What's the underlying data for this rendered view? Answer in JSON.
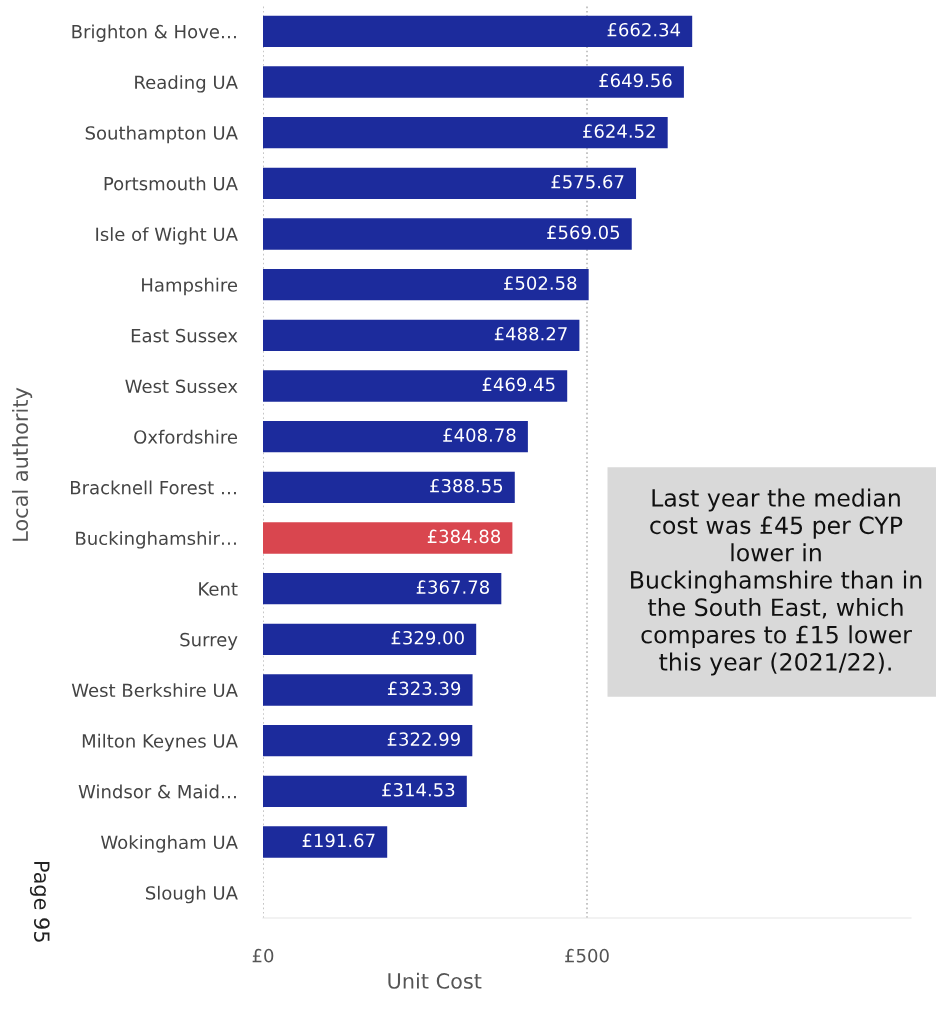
{
  "chart_data": {
    "type": "bar",
    "orientation": "horizontal",
    "xlabel": "Unit Cost",
    "ylabel": "Local authority",
    "categories": [
      "Brighton & Hove…",
      "Reading UA",
      "Southampton UA",
      "Portsmouth UA",
      "Isle of Wight UA",
      "Hampshire",
      "East Sussex",
      "West Sussex",
      "Oxfordshire",
      "Bracknell Forest …",
      "Buckinghamshir…",
      "Kent",
      "Surrey",
      "West Berkshire UA",
      "Milton Keynes UA",
      "Windsor & Maid…",
      "Wokingham UA",
      "Slough UA"
    ],
    "values": [
      662.34,
      649.56,
      624.52,
      575.67,
      569.05,
      502.58,
      488.27,
      469.45,
      408.78,
      388.55,
      384.88,
      367.78,
      329.0,
      323.39,
      322.99,
      314.53,
      191.67,
      null
    ],
    "value_labels": [
      "£662.34",
      "£649.56",
      "£624.52",
      "£575.67",
      "£569.05",
      "£502.58",
      "£488.27",
      "£469.45",
      "£408.78",
      "£388.55",
      "£384.88",
      "£367.78",
      "£329.00",
      "£323.39",
      "£322.99",
      "£314.53",
      "£191.67",
      null
    ],
    "colors": [
      "#1c2b9c",
      "#1c2b9c",
      "#1c2b9c",
      "#1c2b9c",
      "#1c2b9c",
      "#1c2b9c",
      "#1c2b9c",
      "#1c2b9c",
      "#1c2b9c",
      "#1c2b9c",
      "#d9464f",
      "#1c2b9c",
      "#1c2b9c",
      "#1c2b9c",
      "#1c2b9c",
      "#1c2b9c",
      "#1c2b9c",
      "#1c2b9c"
    ],
    "xlim": [
      0,
      1000
    ],
    "xticks": [
      {
        "value": 0,
        "label": "£0"
      },
      {
        "value": 500,
        "label": "£500"
      }
    ],
    "grid": "x",
    "annotations": [
      "Last year the median cost was £45 per CYP lower in Buckinghamshire than in the South East, which compares to £15 lower this year (2021/22).",
      "Page 95"
    ]
  }
}
